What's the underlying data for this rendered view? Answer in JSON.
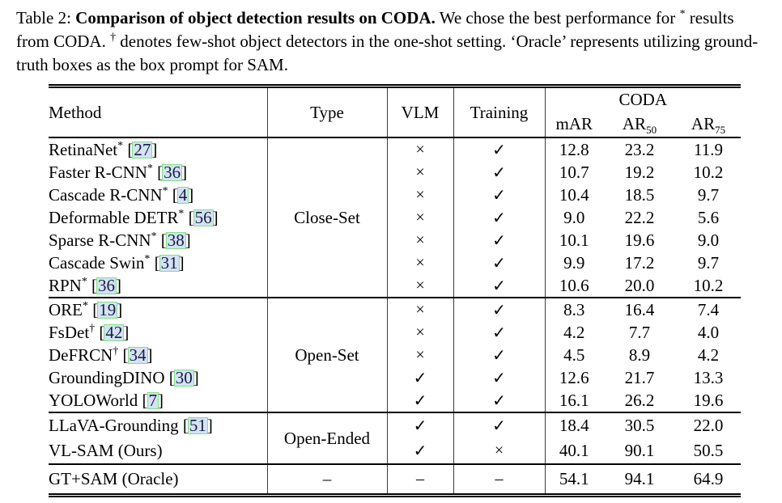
{
  "caption": {
    "label": "Table 2:",
    "title": "Comparison of object detection results on CODA.",
    "seg1": " We chose the best performance for ",
    "sup1": "*",
    "seg2": " results from CODA. ",
    "sup2": "†",
    "seg3": " denotes few-shot object detectors in the one-shot setting. ‘Oracle’ represents utilizing ground-truth boxes as the box prompt for SAM."
  },
  "table": {
    "headers": {
      "method": "Method",
      "type": "Type",
      "vlm": "VLM",
      "training": "Training",
      "coda_group": "CODA",
      "mar": "mAR",
      "ar50_base": "AR",
      "ar50_sub": "50",
      "ar75_base": "AR",
      "ar75_sub": "75"
    },
    "marks": {
      "yes": "✓",
      "no": "×",
      "dash": "–"
    },
    "groups": [
      {
        "type_label": "Close-Set",
        "size_class": "grp-body",
        "rows": [
          {
            "method": "RetinaNet",
            "sup": "*",
            "cite": "27",
            "vlm": "no",
            "training": "yes",
            "mar": "12.8",
            "ar50": "23.2",
            "ar75": "11.9"
          },
          {
            "method": "Faster R-CNN",
            "sup": "*",
            "cite": "36",
            "vlm": "no",
            "training": "yes",
            "mar": "10.7",
            "ar50": "19.2",
            "ar75": "10.2"
          },
          {
            "method": "Cascade R-CNN",
            "sup": "*",
            "cite": "4",
            "vlm": "no",
            "training": "yes",
            "mar": "10.4",
            "ar50": "18.5",
            "ar75": "9.7"
          },
          {
            "method": "Deformable DETR",
            "sup": "*",
            "cite": "56",
            "vlm": "no",
            "training": "yes",
            "mar": "9.0",
            "ar50": "22.2",
            "ar75": "5.6"
          },
          {
            "method": "Sparse R-CNN",
            "sup": "*",
            "cite": "38",
            "vlm": "no",
            "training": "yes",
            "mar": "10.1",
            "ar50": "19.6",
            "ar75": "9.0"
          },
          {
            "method": "Cascade Swin",
            "sup": "*",
            "cite": "31",
            "vlm": "no",
            "training": "yes",
            "mar": "9.9",
            "ar50": "17.2",
            "ar75": "9.7"
          },
          {
            "method": "RPN",
            "sup": "*",
            "cite": "36",
            "vlm": "no",
            "training": "yes",
            "mar": "10.6",
            "ar50": "20.0",
            "ar75": "10.2"
          }
        ]
      },
      {
        "type_label": "Open-Set",
        "size_class": "grp-body",
        "rows": [
          {
            "method": "ORE",
            "sup": "*",
            "cite": "19",
            "vlm": "no",
            "training": "yes",
            "mar": "8.3",
            "ar50": "16.4",
            "ar75": "7.4"
          },
          {
            "method": "FsDet",
            "sup": "†",
            "cite": "42",
            "vlm": "no",
            "training": "yes",
            "mar": "4.2",
            "ar50": "7.7",
            "ar75": "4.0"
          },
          {
            "method": "DeFRCN",
            "sup": "†",
            "cite": "34",
            "vlm": "no",
            "training": "yes",
            "mar": "4.5",
            "ar50": "8.9",
            "ar75": "4.2"
          },
          {
            "method": "GroundingDINO",
            "sup": "",
            "cite": "30",
            "vlm": "yes",
            "training": "yes",
            "mar": "12.6",
            "ar50": "21.7",
            "ar75": "13.3"
          },
          {
            "method": "YOLOWorld",
            "sup": "",
            "cite": "7",
            "vlm": "yes",
            "training": "yes",
            "mar": "16.1",
            "ar50": "26.2",
            "ar75": "19.6"
          }
        ]
      },
      {
        "type_label": "Open-Ended",
        "size_class": "grp-3",
        "rows": [
          {
            "method": "LLaVA-Grounding",
            "sup": "",
            "cite": "51",
            "vlm": "yes",
            "training": "yes",
            "mar": "18.4",
            "ar50": "30.5",
            "ar75": "22.0"
          },
          {
            "method": "VL-SAM (Ours)",
            "sup": "",
            "cite": "",
            "vlm": "yes",
            "training": "no",
            "mar": "40.1",
            "ar50": "90.1",
            "ar75": "50.5"
          }
        ]
      },
      {
        "type_label": "–",
        "size_class": "grp-oracle",
        "rows": [
          {
            "method": "GT+SAM (Oracle)",
            "sup": "",
            "cite": "",
            "vlm": "dash",
            "training": "dash",
            "mar": "54.1",
            "ar50": "94.1",
            "ar75": "64.9"
          }
        ]
      }
    ]
  },
  "colors": {
    "citation_fill": "#d5e1f5",
    "citation_border": "#7ee37e",
    "citation_text": "#13203f",
    "rule": "#000000"
  }
}
